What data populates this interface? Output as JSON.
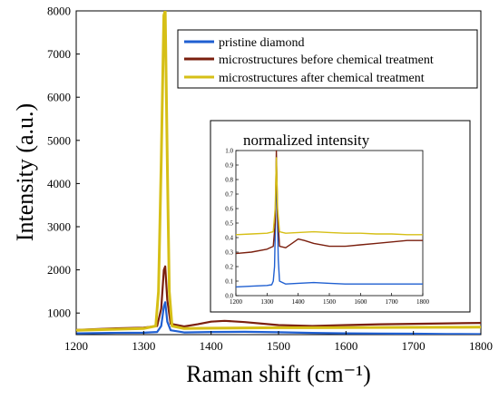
{
  "chart_data": {
    "type": "line",
    "xlabel": "Raman shift (cm⁻¹)",
    "ylabel": "Intensity (a.u.)",
    "xlim": [
      1200,
      1800
    ],
    "ylim": [
      500,
      8000
    ],
    "x_ticks": [
      1200,
      1300,
      1400,
      1500,
      1600,
      1700,
      1800
    ],
    "y_ticks": [
      1000,
      2000,
      3000,
      4000,
      5000,
      6000,
      7000,
      8000
    ],
    "legend_position": "top-right",
    "series": [
      {
        "name": "pristine diamond",
        "color": "#1f5fd1",
        "x": [
          1200,
          1250,
          1300,
          1320,
          1326,
          1330,
          1332,
          1335,
          1340,
          1360,
          1400,
          1450,
          1500,
          1550,
          1600,
          1650,
          1700,
          1750,
          1800
        ],
        "y": [
          530,
          540,
          545,
          560,
          700,
          1150,
          1250,
          800,
          600,
          550,
          560,
          565,
          555,
          540,
          530,
          525,
          520,
          515,
          510
        ]
      },
      {
        "name": "microstructures before chemical treatment",
        "color": "#7a1f0e",
        "x": [
          1200,
          1250,
          1300,
          1320,
          1326,
          1330,
          1332,
          1335,
          1340,
          1360,
          1380,
          1400,
          1420,
          1450,
          1500,
          1550,
          1600,
          1650,
          1700,
          1750,
          1800
        ],
        "y": [
          610,
          640,
          660,
          700,
          1100,
          2000,
          2080,
          1300,
          750,
          690,
          740,
          800,
          820,
          790,
          720,
          700,
          720,
          740,
          750,
          760,
          770
        ]
      },
      {
        "name": "microstructures after chemical treatment",
        "color": "#d6bf16",
        "x": [
          1200,
          1250,
          1300,
          1318,
          1322,
          1326,
          1330,
          1332,
          1335,
          1338,
          1342,
          1360,
          1400,
          1450,
          1500,
          1550,
          1600,
          1650,
          1700,
          1750,
          1800
        ],
        "y": [
          600,
          620,
          640,
          700,
          1500,
          4500,
          7900,
          8000,
          4500,
          1500,
          700,
          640,
          650,
          655,
          660,
          660,
          662,
          665,
          668,
          670,
          672
        ]
      }
    ],
    "inset": {
      "title": "normalized intensity",
      "xlim": [
        1200,
        1800
      ],
      "ylim": [
        0,
        1.0
      ],
      "x_ticks": [
        1200,
        1300,
        1400,
        1500,
        1600,
        1700,
        1800
      ],
      "y_ticks": [
        0,
        0.1,
        0.2,
        0.3,
        0.4,
        0.5,
        0.6,
        0.7,
        0.8,
        0.9,
        1.0
      ],
      "y_tick_labels": [
        "0.0",
        "0.1",
        "0.2",
        "0.3",
        "0.4",
        "0.5",
        "0.6",
        "0.7",
        "0.8",
        "0.9",
        "1.0"
      ],
      "series": [
        {
          "color": "#1f5fd1",
          "x": [
            1200,
            1250,
            1300,
            1315,
            1320,
            1324,
            1328,
            1330,
            1332,
            1336,
            1340,
            1360,
            1400,
            1450,
            1500,
            1550,
            1600,
            1650,
            1700,
            1750,
            1800
          ],
          "y": [
            0.06,
            0.065,
            0.07,
            0.075,
            0.1,
            0.2,
            0.6,
            0.85,
            0.7,
            0.25,
            0.1,
            0.08,
            0.085,
            0.09,
            0.085,
            0.08,
            0.08,
            0.08,
            0.08,
            0.08,
            0.08
          ]
        },
        {
          "color": "#7a1f0e",
          "x": [
            1200,
            1250,
            1300,
            1320,
            1326,
            1330,
            1334,
            1340,
            1360,
            1380,
            1400,
            1420,
            1450,
            1500,
            1550,
            1600,
            1650,
            1700,
            1750,
            1800
          ],
          "y": [
            0.29,
            0.3,
            0.32,
            0.34,
            0.5,
            1.0,
            0.55,
            0.34,
            0.33,
            0.36,
            0.39,
            0.38,
            0.36,
            0.34,
            0.34,
            0.35,
            0.36,
            0.37,
            0.38,
            0.38
          ]
        },
        {
          "color": "#d6bf16",
          "x": [
            1200,
            1250,
            1300,
            1320,
            1326,
            1330,
            1334,
            1340,
            1360,
            1400,
            1450,
            1500,
            1550,
            1600,
            1650,
            1700,
            1750,
            1800
          ],
          "y": [
            0.42,
            0.425,
            0.43,
            0.44,
            0.6,
            0.95,
            0.6,
            0.44,
            0.43,
            0.435,
            0.44,
            0.435,
            0.43,
            0.43,
            0.425,
            0.425,
            0.42,
            0.42
          ]
        }
      ]
    }
  }
}
